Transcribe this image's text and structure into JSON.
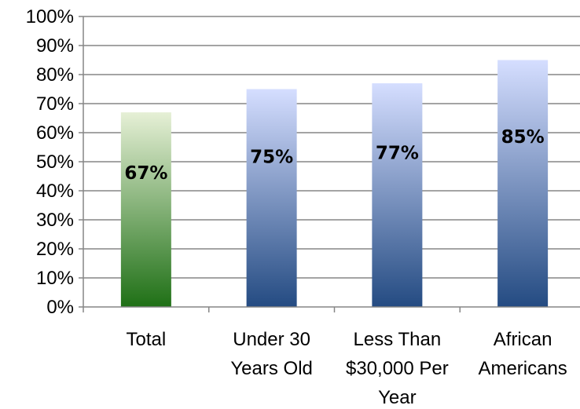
{
  "chart_data": {
    "type": "bar",
    "title": "",
    "xlabel": "",
    "ylabel": "",
    "categories": [
      [
        "Total"
      ],
      [
        "Under 30",
        "Years Old"
      ],
      [
        "Less Than",
        "$30,000 Per",
        "Year"
      ],
      [
        "African",
        "Americans"
      ]
    ],
    "values": [
      67,
      75,
      77,
      85
    ],
    "data_labels": [
      "67%",
      "75%",
      "77%",
      "85%"
    ],
    "ylim": [
      0,
      100
    ],
    "y_ticks": [
      "0%",
      "10%",
      "20%",
      "30%",
      "40%",
      "50%",
      "60%",
      "70%",
      "80%",
      "90%",
      "100%"
    ],
    "grid": true,
    "legend": "none",
    "bar_colors": [
      {
        "top": "#e6f0d6",
        "bottom": "#1f7016"
      },
      {
        "top": "#d5deff",
        "bottom": "#244b82"
      },
      {
        "top": "#d5deff",
        "bottom": "#244b82"
      },
      {
        "top": "#d5deff",
        "bottom": "#244b82"
      }
    ],
    "grid_color": "#868686",
    "axis_color": "#868686"
  }
}
